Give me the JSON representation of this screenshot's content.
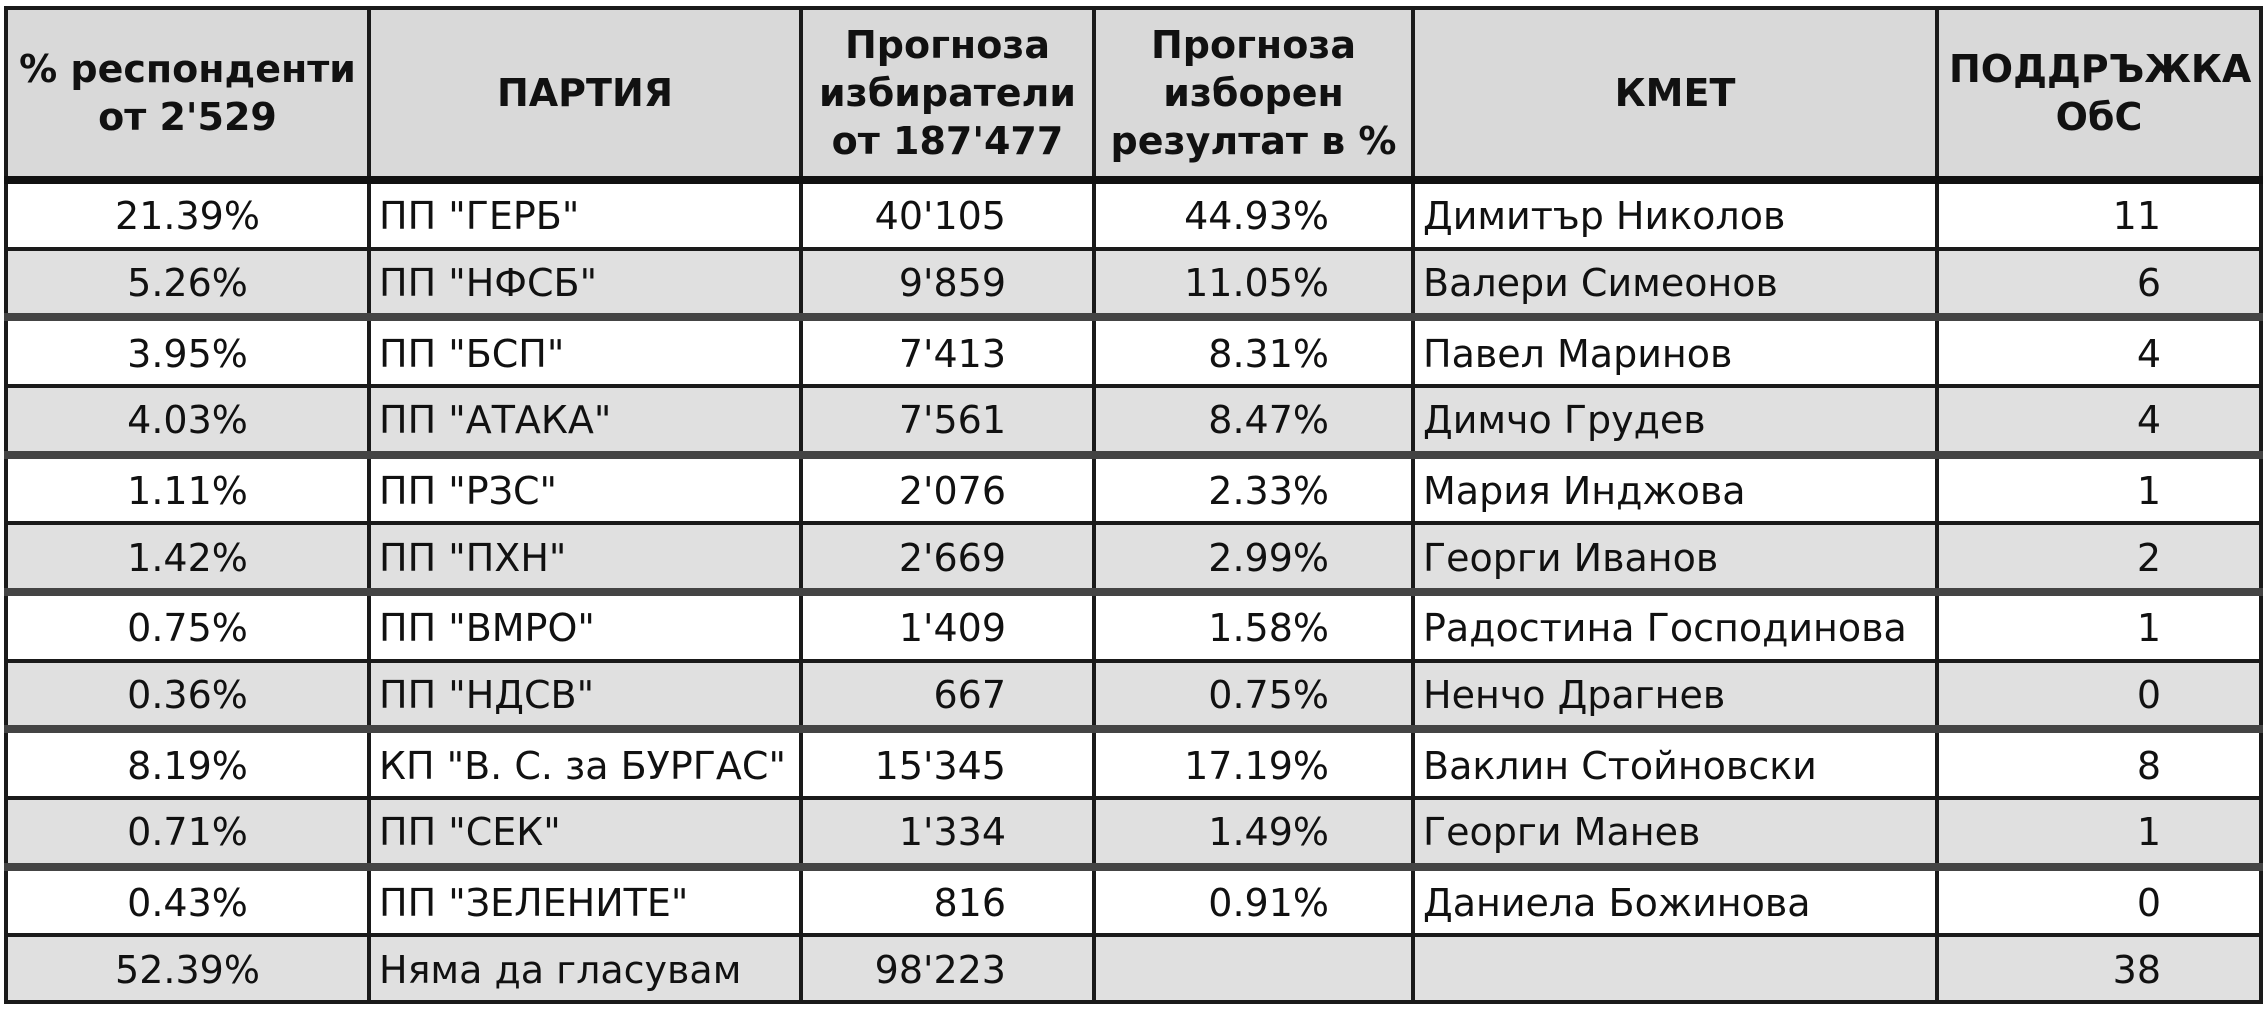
{
  "headers": {
    "respondents": "% респонденти от 2'529",
    "party": "ПАРТИЯ",
    "voters": "Прогноза избиратели от 187'477",
    "result": "Прогноза изборен резултат в %",
    "mayor": "КМЕТ",
    "support": "ПОДДРЪЖКА ОбС"
  },
  "rows": [
    {
      "pct": "21.39%",
      "party": "ПП \"ГЕРБ\"",
      "voters": "40'105",
      "result": "44.93%",
      "mayor": "Димитър Николов",
      "support": "11"
    },
    {
      "pct": "5.26%",
      "party": "ПП \"НФСБ\"",
      "voters": "9'859",
      "result": "11.05%",
      "mayor": "Валери Симеонов",
      "support": "6"
    },
    {
      "pct": "3.95%",
      "party": "ПП \"БСП\"",
      "voters": "7'413",
      "result": "8.31%",
      "mayor": "Павел Маринов",
      "support": "4"
    },
    {
      "pct": "4.03%",
      "party": "ПП \"АТАКА\"",
      "voters": "7'561",
      "result": "8.47%",
      "mayor": "Димчо Грудев",
      "support": "4"
    },
    {
      "pct": "1.11%",
      "party": "ПП \"РЗС\"",
      "voters": "2'076",
      "result": "2.33%",
      "mayor": "Мария Инджова",
      "support": "1"
    },
    {
      "pct": "1.42%",
      "party": "ПП \"ПХН\"",
      "voters": "2'669",
      "result": "2.99%",
      "mayor": "Георги Иванов",
      "support": "2"
    },
    {
      "pct": "0.75%",
      "party": "ПП \"ВМРО\"",
      "voters": "1'409",
      "result": "1.58%",
      "mayor": "Радостина Господинова",
      "support": "1"
    },
    {
      "pct": "0.36%",
      "party": "ПП \"НДСВ\"",
      "voters": "667",
      "result": "0.75%",
      "mayor": "Ненчо Драгнев",
      "support": "0"
    },
    {
      "pct": "8.19%",
      "party": "КП \"В. С. за БУРГАС\"",
      "voters": "15'345",
      "result": "17.19%",
      "mayor": "Ваклин Стойновски",
      "support": "8"
    },
    {
      "pct": "0.71%",
      "party": "ПП \"СЕК\"",
      "voters": "1'334",
      "result": "1.49%",
      "mayor": "Георги Манев",
      "support": "1"
    },
    {
      "pct": "0.43%",
      "party": "ПП \"ЗЕЛЕНИТЕ\"",
      "voters": "816",
      "result": "0.91%",
      "mayor": "Даниела Божинова",
      "support": "0"
    },
    {
      "pct": "52.39%",
      "party": "Няма да гласувам",
      "voters": "98'223",
      "result": "",
      "mayor": "",
      "support": "38"
    }
  ]
}
